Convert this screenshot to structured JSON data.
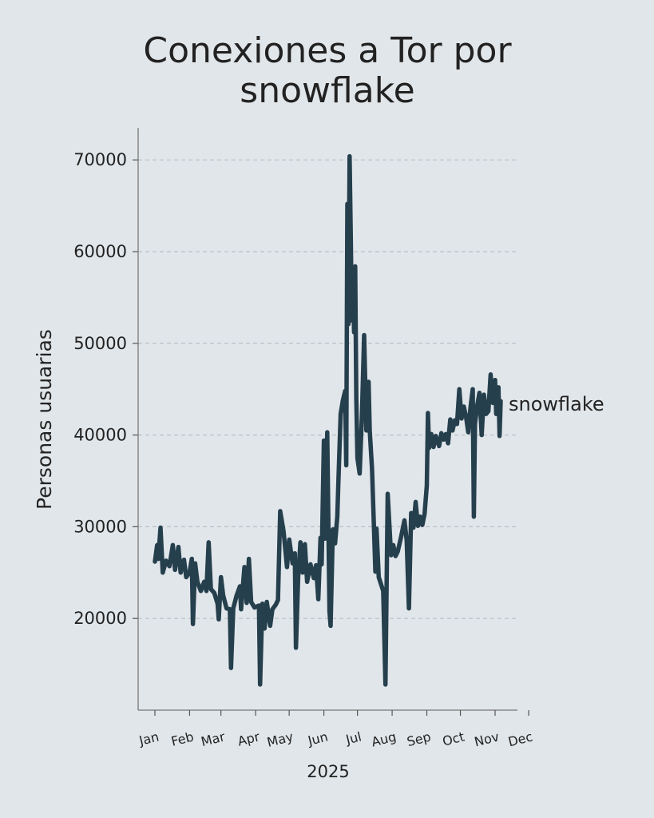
{
  "chart_data": {
    "type": "line",
    "title_lines": [
      "Conexiones a Tor por",
      "snowflake"
    ],
    "xlabel": "2025",
    "ylabel": "Personas usuarias",
    "ylim": [
      10000,
      73500
    ],
    "yticks": [
      "20000",
      "30000",
      "40000",
      "50000",
      "60000",
      "70000"
    ],
    "xticks": [
      {
        "label": "Jan",
        "date": "2025-01-01"
      },
      {
        "label": "Feb",
        "date": "2025-02-01"
      },
      {
        "label": "Mar",
        "date": "2025-03-01"
      },
      {
        "label": "Apr",
        "date": "2025-04-01"
      },
      {
        "label": "May",
        "date": "2025-05-01"
      },
      {
        "label": "Jun",
        "date": "2025-06-01"
      },
      {
        "label": "Jul",
        "date": "2025-07-01"
      },
      {
        "label": "Aug",
        "date": "2025-08-01"
      },
      {
        "label": "Sep",
        "date": "2025-09-01"
      },
      {
        "label": "Oct",
        "date": "2025-10-01"
      },
      {
        "label": "Nov",
        "date": "2025-11-01"
      },
      {
        "label": "Dec",
        "date": "2025-12-01"
      }
    ],
    "grid": "horizontal-dashed",
    "line_color": "#253f4d",
    "series": [
      {
        "name": "snowflake",
        "points": [
          [
            "2025-01-01",
            26200
          ],
          [
            "2025-01-03",
            28000
          ],
          [
            "2025-01-04",
            26500
          ],
          [
            "2025-01-06",
            29900
          ],
          [
            "2025-01-08",
            25000
          ],
          [
            "2025-01-11",
            26300
          ],
          [
            "2025-01-14",
            25700
          ],
          [
            "2025-01-17",
            28000
          ],
          [
            "2025-01-19",
            25300
          ],
          [
            "2025-01-22",
            27800
          ],
          [
            "2025-01-24",
            25000
          ],
          [
            "2025-01-27",
            26400
          ],
          [
            "2025-01-29",
            24500
          ],
          [
            "2025-02-01",
            25000
          ],
          [
            "2025-02-03",
            26500
          ],
          [
            "2025-02-04",
            19400
          ],
          [
            "2025-02-06",
            26000
          ],
          [
            "2025-02-08",
            24000
          ],
          [
            "2025-02-11",
            23000
          ],
          [
            "2025-02-14",
            24000
          ],
          [
            "2025-02-16",
            23000
          ],
          [
            "2025-02-18",
            28300
          ],
          [
            "2025-02-20",
            23200
          ],
          [
            "2025-02-23",
            22800
          ],
          [
            "2025-02-26",
            21600
          ],
          [
            "2025-02-27",
            19900
          ],
          [
            "2025-03-01",
            24500
          ],
          [
            "2025-03-03",
            22500
          ],
          [
            "2025-03-06",
            21100
          ],
          [
            "2025-03-09",
            21000
          ],
          [
            "2025-03-10",
            14600
          ],
          [
            "2025-03-12",
            21100
          ],
          [
            "2025-03-15",
            22500
          ],
          [
            "2025-03-18",
            23500
          ],
          [
            "2025-03-19",
            21000
          ],
          [
            "2025-03-22",
            25600
          ],
          [
            "2025-03-24",
            21700
          ],
          [
            "2025-03-26",
            26500
          ],
          [
            "2025-03-28",
            21800
          ],
          [
            "2025-03-31",
            21200
          ],
          [
            "2025-04-04",
            21400
          ],
          [
            "2025-04-05",
            12800
          ],
          [
            "2025-04-07",
            21600
          ],
          [
            "2025-04-09",
            18900
          ],
          [
            "2025-04-11",
            21800
          ],
          [
            "2025-04-14",
            19200
          ],
          [
            "2025-04-16",
            21000
          ],
          [
            "2025-04-19",
            21500
          ],
          [
            "2025-04-21",
            22000
          ],
          [
            "2025-04-23",
            31700
          ],
          [
            "2025-04-26",
            29500
          ],
          [
            "2025-04-29",
            25600
          ],
          [
            "2025-05-01",
            28600
          ],
          [
            "2025-05-04",
            26000
          ],
          [
            "2025-05-06",
            27100
          ],
          [
            "2025-05-07",
            16800
          ],
          [
            "2025-05-09",
            24500
          ],
          [
            "2025-05-11",
            28300
          ],
          [
            "2025-05-13",
            25000
          ],
          [
            "2025-05-15",
            28100
          ],
          [
            "2025-05-17",
            24000
          ],
          [
            "2025-05-20",
            25900
          ],
          [
            "2025-05-23",
            24400
          ],
          [
            "2025-05-25",
            25800
          ],
          [
            "2025-05-27",
            22100
          ],
          [
            "2025-05-29",
            28800
          ],
          [
            "2025-05-30",
            25900
          ],
          [
            "2025-06-01",
            39400
          ],
          [
            "2025-06-02",
            28700
          ],
          [
            "2025-06-04",
            40300
          ],
          [
            "2025-06-06",
            20800
          ],
          [
            "2025-06-07",
            19200
          ],
          [
            "2025-06-09",
            29700
          ],
          [
            "2025-06-11",
            28200
          ],
          [
            "2025-06-13",
            31100
          ],
          [
            "2025-06-14",
            35000
          ],
          [
            "2025-06-16",
            42300
          ],
          [
            "2025-06-18",
            43800
          ],
          [
            "2025-06-20",
            44800
          ],
          [
            "2025-06-21",
            36700
          ],
          [
            "2025-06-22",
            65200
          ],
          [
            "2025-06-23",
            52100
          ],
          [
            "2025-06-24",
            70400
          ],
          [
            "2025-06-25",
            62000
          ],
          [
            "2025-06-26",
            52500
          ],
          [
            "2025-06-27",
            58300
          ],
          [
            "2025-06-28",
            51200
          ],
          [
            "2025-06-29",
            58400
          ],
          [
            "2025-06-30",
            44000
          ],
          [
            "2025-07-01",
            37500
          ],
          [
            "2025-07-03",
            35800
          ],
          [
            "2025-07-05",
            42000
          ],
          [
            "2025-07-07",
            50900
          ],
          [
            "2025-07-09",
            40500
          ],
          [
            "2025-07-11",
            45800
          ],
          [
            "2025-07-12",
            40500
          ],
          [
            "2025-07-14",
            36300
          ],
          [
            "2025-07-17",
            25100
          ],
          [
            "2025-07-18",
            29800
          ],
          [
            "2025-07-20",
            24500
          ],
          [
            "2025-07-24",
            23000
          ],
          [
            "2025-07-26",
            12800
          ],
          [
            "2025-07-28",
            33600
          ],
          [
            "2025-07-31",
            26900
          ],
          [
            "2025-08-02",
            28000
          ],
          [
            "2025-08-04",
            26800
          ],
          [
            "2025-08-06",
            27300
          ],
          [
            "2025-08-09",
            28900
          ],
          [
            "2025-08-12",
            30700
          ],
          [
            "2025-08-14",
            28500
          ],
          [
            "2025-08-16",
            21100
          ],
          [
            "2025-08-18",
            31500
          ],
          [
            "2025-08-20",
            29900
          ],
          [
            "2025-08-22",
            32700
          ],
          [
            "2025-08-24",
            30100
          ],
          [
            "2025-08-26",
            31100
          ],
          [
            "2025-08-28",
            30200
          ],
          [
            "2025-08-30",
            31400
          ],
          [
            "2025-09-01",
            34500
          ],
          [
            "2025-09-02",
            42400
          ],
          [
            "2025-09-03",
            38600
          ],
          [
            "2025-09-05",
            40100
          ],
          [
            "2025-09-07",
            38700
          ],
          [
            "2025-09-09",
            39900
          ],
          [
            "2025-09-12",
            38800
          ],
          [
            "2025-09-14",
            40200
          ],
          [
            "2025-09-16",
            39500
          ],
          [
            "2025-09-18",
            40100
          ],
          [
            "2025-09-20",
            39100
          ],
          [
            "2025-09-22",
            41700
          ],
          [
            "2025-09-24",
            40500
          ],
          [
            "2025-09-26",
            41600
          ],
          [
            "2025-09-28",
            41200
          ],
          [
            "2025-09-30",
            45000
          ],
          [
            "2025-10-02",
            41800
          ],
          [
            "2025-10-04",
            43100
          ],
          [
            "2025-10-06",
            42000
          ],
          [
            "2025-10-08",
            40300
          ],
          [
            "2025-10-10",
            43000
          ],
          [
            "2025-10-12",
            45000
          ],
          [
            "2025-10-13",
            31100
          ],
          [
            "2025-10-14",
            41200
          ],
          [
            "2025-10-16",
            43200
          ],
          [
            "2025-10-18",
            44600
          ],
          [
            "2025-10-20",
            40000
          ],
          [
            "2025-10-22",
            44400
          ],
          [
            "2025-10-24",
            42300
          ],
          [
            "2025-10-26",
            42600
          ],
          [
            "2025-10-28",
            46600
          ],
          [
            "2025-10-30",
            43500
          ],
          [
            "2025-11-01",
            46000
          ],
          [
            "2025-11-02",
            42300
          ],
          [
            "2025-11-04",
            45200
          ],
          [
            "2025-11-05",
            39900
          ],
          [
            "2025-11-06",
            43700
          ]
        ]
      }
    ]
  }
}
